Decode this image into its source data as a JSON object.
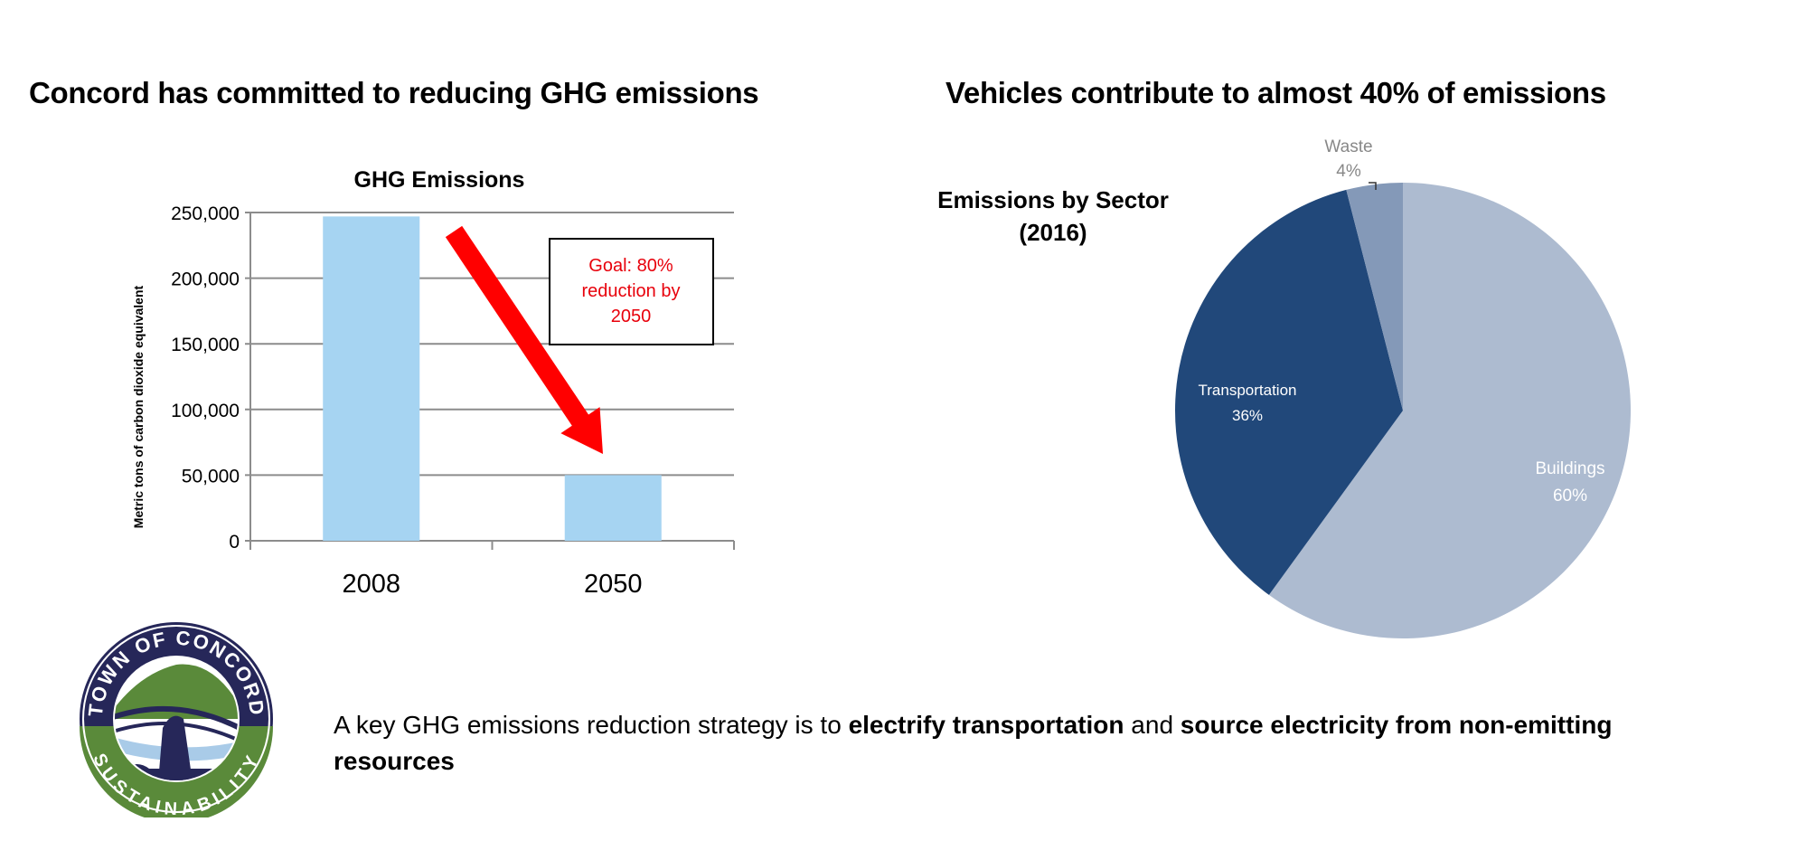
{
  "left_title": "Concord has committed to reducing GHG emissions",
  "right_title": "Vehicles contribute to almost 40% of emissions",
  "chart_data": [
    {
      "type": "bar",
      "title": "GHG Emissions",
      "ylabel": "Metric tons of carbon dioxide equivalent",
      "xlabel": "",
      "categories": [
        "2008",
        "2050"
      ],
      "values": [
        247000,
        50000
      ],
      "ylim": [
        0,
        250000
      ],
      "yticks": [
        0,
        50000,
        100000,
        150000,
        200000,
        250000
      ],
      "ytick_labels": [
        "0",
        "50,000",
        "100,000",
        "150,000",
        "200,000",
        "250,000"
      ],
      "grid": true,
      "bar_color": "#a6d4f2",
      "annotation": {
        "line1": "Goal: 80%",
        "line2": "reduction by",
        "line3": "2050",
        "color": "#e8000b"
      },
      "arrow_color": "#ff0000"
    },
    {
      "type": "pie",
      "title_line1": "Emissions by Sector",
      "title_line2": "(2016)",
      "slices": [
        {
          "label": "Buildings",
          "value": 60,
          "pct": "60%",
          "color": "#adbbd0"
        },
        {
          "label": "Transportation",
          "value": 36,
          "pct": "36%",
          "color": "#21487a"
        },
        {
          "label": "Waste",
          "value": 4,
          "pct": "4%",
          "color": "#8499b8"
        }
      ]
    }
  ],
  "logo": {
    "top_text": "TOWN OF CONCORD",
    "bottom_text": "SUSTAINABILITY",
    "navy": "#262759",
    "green": "#5a8a3a"
  },
  "bottom_text": {
    "part1": "A key GHG emissions reduction strategy is to ",
    "bold1": "electrify transportation",
    "part2": " and ",
    "bold2": "source electricity from non-emitting resources"
  }
}
